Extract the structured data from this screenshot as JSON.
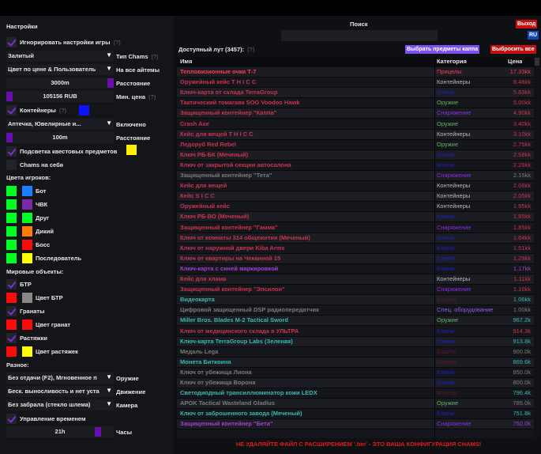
{
  "settings": {
    "title": "Настройки",
    "ignore_game_settings": {
      "label": "Игнорировать настройки игры",
      "help": "(?)",
      "checked": true
    },
    "chams_type": {
      "value": "Залитый",
      "label": "Тип Chams",
      "help": "(?)"
    },
    "color_mode": {
      "value": "Цвет по цене & Пользователь",
      "label": "На все айтемы"
    },
    "distance": {
      "value": "3000m",
      "label": "Расстояние",
      "fraction": 1.0
    },
    "min_price": {
      "value": "105156 RUB",
      "label": "Мин. цена",
      "help": "(?)",
      "fraction": 0.0
    },
    "containers": {
      "label": "Контейнеры",
      "help": "(?)",
      "checked": true,
      "color": "#0a12ff"
    },
    "container_types": {
      "value": "Аптечка, Ювелирные и...",
      "label": "Включено"
    },
    "container_distance": {
      "value": "100m",
      "label": "Расстояние",
      "fraction": 0.0
    },
    "quest_items": {
      "label": "Подсветка квестовых предметов",
      "checked": true,
      "color": "#ffee00"
    },
    "chams_self": {
      "label": "Chams на себя",
      "checked": false
    }
  },
  "player_colors": {
    "title": "Цвета игроков:",
    "items": [
      {
        "label": "Бот",
        "c1": "#00ff22",
        "c2": "#1a80ff"
      },
      {
        "label": "ЧВК",
        "c1": "#00ff22",
        "c2": "#7a2aa8"
      },
      {
        "label": "Друг",
        "c1": "#00ff22",
        "c2": "#00ff22"
      },
      {
        "label": "Дикий",
        "c1": "#00ff22",
        "c2": "#ff7a0a"
      },
      {
        "label": "Босс",
        "c1": "#00ff22",
        "c2": "#ff0a0a"
      },
      {
        "label": "Последователь",
        "c1": "#00ff22",
        "c2": "#ffff00"
      }
    ]
  },
  "world": {
    "title": "Мировые объекты:",
    "btr": {
      "label": "БТР",
      "checked": true
    },
    "btr_color": {
      "label": "Цвет БТР",
      "c1": "#ff0a0a",
      "c2": "#888888"
    },
    "grenades": {
      "label": "Гранаты",
      "checked": true
    },
    "grenade_color": {
      "label": "Цвет гранат",
      "c1": "#ff0a0a",
      "c2": "#ff0a0a"
    },
    "tripwires": {
      "label": "Растяжки",
      "checked": true
    },
    "tripwire_color": {
      "label": "Цвет растяжек",
      "c1": "#ff0a0a",
      "c2": "#ffff00"
    }
  },
  "misc": {
    "title": "Разное:",
    "weapon": {
      "value": "Без отдачи (F2), Мгновенное п",
      "label": "Оружие"
    },
    "movement": {
      "value": "Беск. выносливость и нет уста",
      "label": "Движение"
    },
    "camera": {
      "value": "Без забрала (стекло шлема)",
      "label": "Камера"
    },
    "time_control": {
      "label": "Управление временем",
      "checked": true
    },
    "hours": {
      "value": "21h",
      "label": "Часы",
      "fraction": 0.875
    }
  },
  "header": {
    "search_label": "Поиск",
    "search_value": "",
    "exit": "Выход",
    "lang": "RU"
  },
  "loot": {
    "title": "Доступный лут (3457):",
    "help": "(?)",
    "select_kappa": "Выбрать предметы каппа",
    "drop_all": "Выбросить все",
    "columns": [
      "Имя",
      "Категория",
      "Цена"
    ],
    "colors": {
      "red": "#c8334f",
      "bright": "#ff3b4f",
      "teal": "#36b9b2",
      "gray": "#7a7a7a",
      "purple": "#a040d0",
      "keys": "#1c22c8",
      "gear": "#8a2be2",
      "weapon": "#5fb35f",
      "cont": "#b8b8c0",
      "barter": "#5a1a2c",
      "spec": "#8a5ae8"
    },
    "rows": [
      [
        "Тепловизионные очки Т-7",
        "Прицелы",
        "17.33kk",
        "bright",
        "bright"
      ],
      [
        "Оружейный кейс T H I C C",
        "Контейнеры",
        "8.48kk",
        "red",
        "cont"
      ],
      [
        "Ключ-карта от склада TerraGroup",
        "Ключи",
        "5.63kk",
        "red",
        "keys"
      ],
      [
        "Тактический томагавк SOG Voodoo Hawk",
        "Оружие",
        "5.00kk",
        "red",
        "weapon"
      ],
      [
        "Защищенный контейнер \"Каппа\"",
        "Снаряжение",
        "4.90kk",
        "red",
        "gear"
      ],
      [
        "Crash Axe",
        "Оружие",
        "3.40kk",
        "red",
        "weapon"
      ],
      [
        "Кейс для вещей T H I C C",
        "Контейнеры",
        "3.10kk",
        "red",
        "cont"
      ],
      [
        "Ледоруб Red Rebel",
        "Оружие",
        "2.75kk",
        "red",
        "weapon"
      ],
      [
        "Ключ РБ-БК (Меченый)",
        "Ключи",
        "2.58kk",
        "red",
        "keys"
      ],
      [
        "Ключ от закрытой секции автосалона",
        "Ключи",
        "2.26kk",
        "red",
        "keys"
      ],
      [
        "Защищенный контейнер \"Тета\"",
        "Снаряжение",
        "2.15kk",
        "gray",
        "gear"
      ],
      [
        "Кейс для вещей",
        "Контейнеры",
        "2.08kk",
        "red",
        "cont"
      ],
      [
        "Кейс S I C C",
        "Контейнеры",
        "2.05kk",
        "red",
        "cont"
      ],
      [
        "Оружейный кейс",
        "Контейнеры",
        "1.95kk",
        "red",
        "cont"
      ],
      [
        "Ключ РБ-ВО (Меченый)",
        "Ключи",
        "1.85kk",
        "red",
        "keys"
      ],
      [
        "Защищенный контейнер \"Гамма\"",
        "Снаряжение",
        "1.85kk",
        "red",
        "gear"
      ],
      [
        "Ключ от комнаты 314 общежития (Меченый)",
        "Ключи",
        "1.64kk",
        "red",
        "keys"
      ],
      [
        "Ключ от наружной двери Kiba Arms",
        "Ключи",
        "1.51kk",
        "red",
        "keys"
      ],
      [
        "Ключ от квартиры на Чеканной 15",
        "Ключи",
        "1.29kk",
        "red",
        "keys"
      ],
      [
        "Ключ-карта с синей маркировкой",
        "Ключи",
        "1.17kk",
        "purple",
        "keys"
      ],
      [
        "Кейс для хлама",
        "Контейнеры",
        "1.11kk",
        "red",
        "cont"
      ],
      [
        "Защищенный контейнер \"Эпсилон\"",
        "Снаряжение",
        "1.10kk",
        "red",
        "gear"
      ],
      [
        "Видеокарта",
        "Бартер",
        "1.06kk",
        "teal",
        "barter"
      ],
      [
        "Цифровой защищенный DSP радиопередатчик",
        "Спец. оборудование",
        "1.00kk",
        "gray",
        "spec"
      ],
      [
        "Miller Bros. Blades M-2 Tactical Sword",
        "Оружие",
        "967.2k",
        "teal",
        "weapon"
      ],
      [
        "Ключ от медицинского склада в УЛЬТРА",
        "Ключи",
        "914.3k",
        "red",
        "keys"
      ],
      [
        "Ключ-карта TerraGroup Labs (Зеленая)",
        "Ключи",
        "913.8k",
        "teal",
        "keys"
      ],
      [
        "Медаль Lega",
        "Бартер",
        "900.0k",
        "gray",
        "barter"
      ],
      [
        "Монета Биткоина",
        "Бартер",
        "869.6k",
        "teal",
        "barter"
      ],
      [
        "Ключ от убежища Лиона",
        "Ключи",
        "850.0k",
        "gray",
        "keys"
      ],
      [
        "Ключ от убежища Ворона",
        "Ключи",
        "800.0k",
        "gray",
        "keys"
      ],
      [
        "Светодиодный трансиллюминатор кожи LEDX",
        "Бартер",
        "796.4k",
        "teal",
        "barter"
      ],
      [
        "APOK Tactical Wasteland Gladius",
        "Оружие",
        "785.0k",
        "gray",
        "weapon"
      ],
      [
        "Ключ от заброшенного завода (Меченый)",
        "Ключи",
        "751.8k",
        "teal",
        "keys"
      ],
      [
        "Защищенный контейнер \"Бета\"",
        "Снаряжение",
        "750.0k",
        "purple",
        "gear"
      ]
    ]
  },
  "footer": "НЕ УДАЛЯЙТЕ ФАЙЛ С РАСШИРЕНИЕМ '.bin' - ЭТО ВАША КОНФИГУРАЦИЯ CHAMS!"
}
